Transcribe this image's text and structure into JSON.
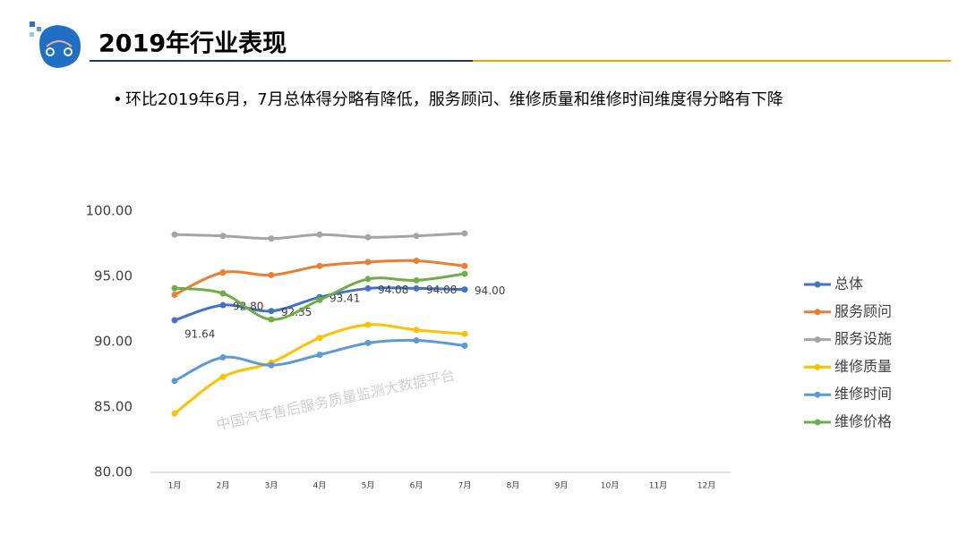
{
  "header": {
    "title": "2019年行业表现"
  },
  "bullet": "环比2019年6月，7月总体得分略有降低，服务顾问、维修质量和维修时间维度得分略有下降",
  "chart_data": {
    "type": "line",
    "annotation": "中国汽车售后服务质量监测大数据平台",
    "categories": [
      "1月",
      "2月",
      "3月",
      "4月",
      "5月",
      "6月",
      "7月",
      "8月",
      "9月",
      "10月",
      "11月",
      "12月"
    ],
    "ylim": [
      80,
      100
    ],
    "yticks": [
      {
        "value": 80,
        "label": "80.00"
      },
      {
        "value": 85,
        "label": "85.00"
      },
      {
        "value": 90,
        "label": "90.00"
      },
      {
        "value": 95,
        "label": "95.00"
      },
      {
        "value": 100,
        "label": "100.00"
      }
    ],
    "legend": "right",
    "series": [
      {
        "name": "总体",
        "color": "#4472c4",
        "values": [
          91.64,
          92.8,
          92.35,
          93.41,
          94.08,
          94.08,
          94.0,
          null,
          null,
          null,
          null,
          null
        ],
        "value_labels": [
          "91.64",
          "92.80",
          "92.35",
          "93.41",
          "94.08",
          "94.08",
          "94.00",
          null,
          null,
          null,
          null,
          null
        ]
      },
      {
        "name": "服务顾问",
        "color": "#ed7d31",
        "values": [
          93.6,
          95.3,
          95.1,
          95.8,
          96.1,
          96.2,
          95.8,
          null,
          null,
          null,
          null,
          null
        ]
      },
      {
        "name": "服务设施",
        "color": "#a5a5a5",
        "values": [
          98.2,
          98.1,
          97.9,
          98.2,
          98.0,
          98.1,
          98.3,
          null,
          null,
          null,
          null,
          null
        ]
      },
      {
        "name": "维修质量",
        "color": "#ffc000",
        "values": [
          84.5,
          87.3,
          88.4,
          90.3,
          91.3,
          90.9,
          90.6,
          null,
          null,
          null,
          null,
          null
        ]
      },
      {
        "name": "维修时间",
        "color": "#5b9bd5",
        "values": [
          87.0,
          88.8,
          88.2,
          89.0,
          89.9,
          90.1,
          89.7,
          null,
          null,
          null,
          null,
          null
        ]
      },
      {
        "name": "维修价格",
        "color": "#70ad47",
        "values": [
          94.1,
          93.7,
          91.7,
          93.2,
          94.8,
          94.7,
          95.2,
          null,
          null,
          null,
          null,
          null
        ]
      }
    ]
  }
}
